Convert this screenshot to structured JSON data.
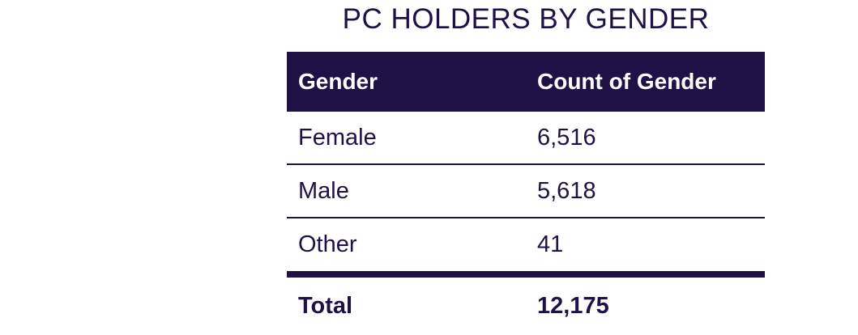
{
  "title": "PC HOLDERS BY GENDER",
  "chart_data": {
    "type": "table",
    "title": "PC HOLDERS BY GENDER",
    "columns": [
      "Gender",
      "Count of Gender"
    ],
    "rows": [
      {
        "gender": "Female",
        "count": "6,516"
      },
      {
        "gender": "Male",
        "count": "5,618"
      },
      {
        "gender": "Other",
        "count": "41"
      }
    ],
    "total": {
      "label": "Total",
      "count": "12,175"
    }
  },
  "colors": {
    "header_bg": "#1f1146",
    "text": "#1f1146",
    "header_text": "#ffffff"
  }
}
